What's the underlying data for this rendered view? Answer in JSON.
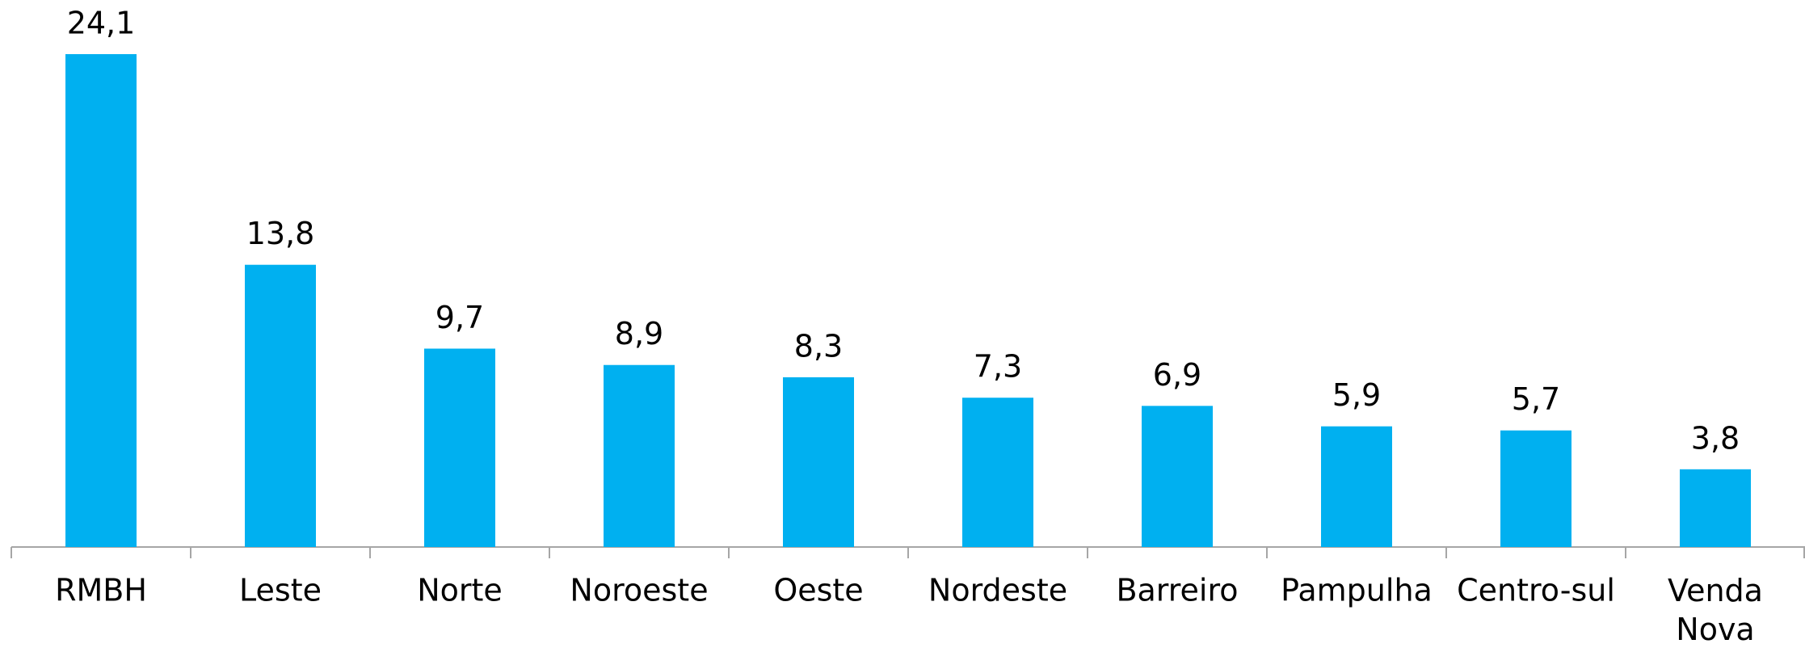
{
  "chart_data": {
    "type": "bar",
    "categories": [
      "RMBH",
      "Leste",
      "Norte",
      "Noroeste",
      "Oeste",
      "Nordeste",
      "Barreiro",
      "Pampulha",
      "Centro-sul",
      "Venda Nova"
    ],
    "values": [
      24.1,
      13.8,
      9.7,
      8.9,
      8.3,
      7.3,
      6.9,
      5.9,
      5.7,
      3.8
    ],
    "value_labels": [
      "24,1",
      "13,8",
      "9,7",
      "8,9",
      "8,3",
      "7,3",
      "6,9",
      "5,9",
      "5,7",
      "3,8"
    ],
    "color": "#00b0f0"
  }
}
